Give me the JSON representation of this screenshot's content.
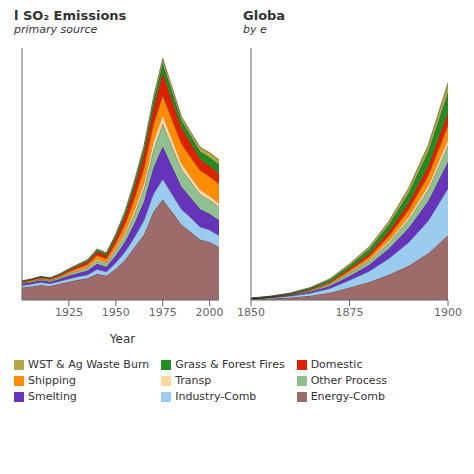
{
  "chart_data": [
    {
      "type": "area",
      "stacked": true,
      "title": "l SO₂ Emissions",
      "subtitle": "primary source",
      "x_label": "Year",
      "grid": false,
      "tick_labels": "x",
      "x": [
        1900,
        1905,
        1910,
        1915,
        1920,
        1925,
        1930,
        1935,
        1940,
        1945,
        1950,
        1955,
        1960,
        1965,
        1970,
        1975,
        1980,
        1985,
        1990,
        1995,
        2000,
        2005
      ],
      "xlim": [
        1900,
        2005
      ],
      "xticks": [
        1925,
        1950,
        1975,
        2000
      ],
      "ylim": [
        0,
        50
      ],
      "yticks": [
        0,
        5,
        10,
        15,
        20,
        25,
        30,
        35,
        40,
        45,
        50
      ],
      "series": [
        {
          "name": "Energy-Comb",
          "color": "#9e6b6b",
          "values": [
            2.5,
            2.7,
            3.0,
            2.8,
            3.2,
            3.6,
            4.0,
            4.3,
            5.2,
            4.8,
            6.2,
            8.0,
            10.5,
            13.0,
            17.5,
            20.0,
            17.5,
            15.0,
            13.5,
            12.0,
            11.5,
            10.5
          ]
        },
        {
          "name": "Industry-Comb",
          "color": "#99ccee",
          "values": [
            0.4,
            0.45,
            0.5,
            0.45,
            0.5,
            0.6,
            0.65,
            0.7,
            0.9,
            0.8,
            1.2,
            1.6,
            2.0,
            2.8,
            3.5,
            4.0,
            3.5,
            3.0,
            2.8,
            2.5,
            2.4,
            2.3
          ]
        },
        {
          "name": "Smelting",
          "color": "#6633bb",
          "values": [
            0.3,
            0.35,
            0.4,
            0.38,
            0.45,
            0.6,
            0.7,
            0.85,
            1.1,
            1.0,
            1.5,
            2.0,
            2.8,
            3.8,
            5.2,
            6.5,
            5.5,
            4.5,
            4.0,
            3.5,
            3.2,
            3.0
          ]
        },
        {
          "name": "Other Process",
          "color": "#90c090",
          "values": [
            0.15,
            0.18,
            0.2,
            0.2,
            0.25,
            0.35,
            0.42,
            0.5,
            0.65,
            0.6,
            0.9,
            1.3,
            1.8,
            2.5,
            3.5,
            4.5,
            4.0,
            3.5,
            3.2,
            3.0,
            2.8,
            2.7
          ]
        },
        {
          "name": "Transp",
          "color": "#ffd59e",
          "values": [
            0.05,
            0.06,
            0.07,
            0.07,
            0.09,
            0.12,
            0.15,
            0.18,
            0.25,
            0.22,
            0.4,
            0.6,
            0.9,
            1.2,
            1.8,
            1.8,
            1.5,
            1.2,
            1.0,
            0.9,
            0.8,
            0.7
          ]
        },
        {
          "name": "Shipping",
          "color": "#ff8c00",
          "values": [
            0.15,
            0.17,
            0.2,
            0.2,
            0.25,
            0.35,
            0.45,
            0.55,
            0.75,
            0.75,
            1.1,
            1.6,
            2.2,
            2.8,
            3.2,
            3.8,
            3.8,
            3.8,
            3.8,
            3.8,
            3.8,
            3.8
          ]
        },
        {
          "name": "Domestic",
          "color": "#dd2200",
          "values": [
            0.12,
            0.14,
            0.17,
            0.17,
            0.22,
            0.32,
            0.42,
            0.52,
            0.72,
            0.72,
            1.1,
            1.6,
            2.2,
            2.8,
            3.2,
            4.5,
            3.8,
            3.2,
            2.8,
            2.3,
            2.1,
            2.0
          ]
        },
        {
          "name": "Grass & Forest Fires",
          "color": "#228B22",
          "values": [
            0.08,
            0.09,
            0.1,
            0.1,
            0.13,
            0.18,
            0.22,
            0.28,
            0.38,
            0.33,
            0.48,
            0.68,
            0.95,
            1.15,
            1.45,
            1.9,
            1.75,
            1.45,
            1.45,
            1.45,
            1.7,
            1.9
          ]
        },
        {
          "name": "WST & Ag Waste Burn",
          "color": "#b5a642",
          "values": [
            0.04,
            0.05,
            0.06,
            0.06,
            0.07,
            0.09,
            0.11,
            0.14,
            0.19,
            0.17,
            0.28,
            0.38,
            0.48,
            0.58,
            0.78,
            0.95,
            0.85,
            0.75,
            0.75,
            0.85,
            0.95,
            0.95
          ]
        }
      ]
    },
    {
      "type": "area",
      "stacked": true,
      "title": "Globa",
      "subtitle": "by e",
      "grid": false,
      "tick_labels": "x",
      "legend": "upper left",
      "x": [
        1850,
        1855,
        1860,
        1865,
        1870,
        1875,
        1880,
        1885,
        1890,
        1895,
        1900
      ],
      "xlim": [
        1850,
        1900
      ],
      "xticks": [
        1850,
        1875,
        1900
      ],
      "ylim": [
        0,
        7
      ],
      "yticks": [
        0,
        1,
        2,
        3,
        4,
        5,
        6,
        7
      ],
      "series": [
        {
          "name": "Energy-Comb",
          "color": "#9e6b6b",
          "values": [
            0.02,
            0.04,
            0.07,
            0.12,
            0.2,
            0.35,
            0.5,
            0.7,
            0.95,
            1.3,
            1.8
          ]
        },
        {
          "name": "Industry-Comb",
          "color": "#99ccee",
          "values": [
            0.01,
            0.02,
            0.04,
            0.07,
            0.12,
            0.2,
            0.3,
            0.45,
            0.65,
            0.9,
            1.3
          ]
        },
        {
          "name": "Smelting",
          "color": "#6633bb",
          "values": [
            0.005,
            0.01,
            0.02,
            0.04,
            0.07,
            0.12,
            0.18,
            0.28,
            0.4,
            0.55,
            0.75
          ]
        },
        {
          "name": "Other Process",
          "color": "#90c090",
          "values": [
            0.003,
            0.006,
            0.012,
            0.022,
            0.04,
            0.07,
            0.1,
            0.16,
            0.23,
            0.32,
            0.45
          ]
        },
        {
          "name": "Transp",
          "color": "#ffd59e",
          "values": [
            0.001,
            0.002,
            0.004,
            0.008,
            0.014,
            0.025,
            0.038,
            0.058,
            0.085,
            0.12,
            0.17
          ]
        },
        {
          "name": "Shipping",
          "color": "#ff8c00",
          "values": [
            0.002,
            0.005,
            0.01,
            0.018,
            0.032,
            0.055,
            0.085,
            0.13,
            0.19,
            0.27,
            0.38
          ]
        },
        {
          "name": "Domestic",
          "color": "#dd2200",
          "values": [
            0.002,
            0.005,
            0.01,
            0.018,
            0.032,
            0.055,
            0.085,
            0.13,
            0.19,
            0.27,
            0.38
          ]
        },
        {
          "name": "Grass & Forest Fires",
          "color": "#228B22",
          "values": [
            0.01,
            0.015,
            0.022,
            0.035,
            0.055,
            0.085,
            0.13,
            0.19,
            0.28,
            0.4,
            0.55
          ]
        },
        {
          "name": "WST & Ag Waste Burn",
          "color": "#b5a642",
          "values": [
            0.003,
            0.005,
            0.009,
            0.015,
            0.025,
            0.04,
            0.06,
            0.09,
            0.13,
            0.18,
            0.25
          ]
        }
      ]
    }
  ]
}
